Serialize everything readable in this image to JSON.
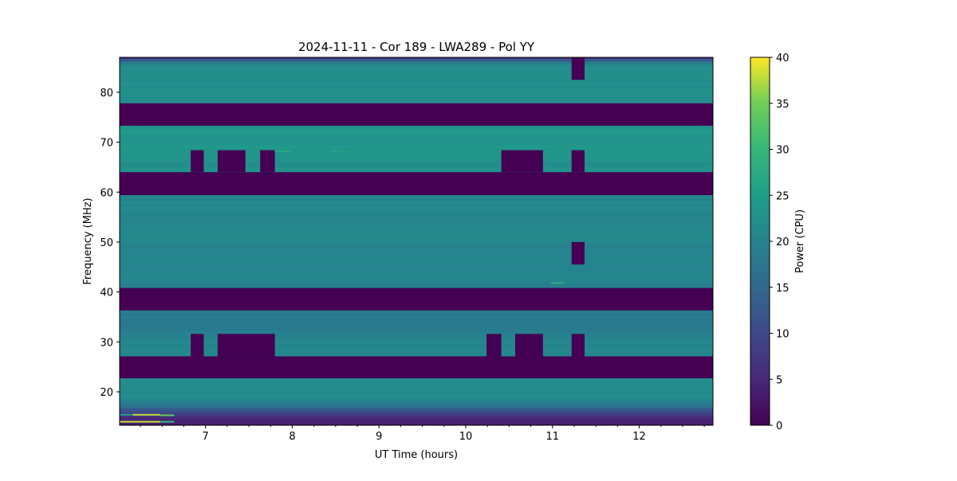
{
  "chart_data": {
    "type": "heatmap",
    "title": "2024-11-11 - Cor 189 - LWA289 - Pol YY",
    "xlabel": "UT Time (hours)",
    "ylabel": "Frequency (MHz)",
    "xlim": [
      6.01,
      12.85
    ],
    "ylim": [
      13.3,
      87.0
    ],
    "xticks": [
      7,
      8,
      9,
      10,
      11,
      12
    ],
    "xtick_labels": [
      "7",
      "8",
      "9",
      "10",
      "11",
      "12"
    ],
    "x_minor_step": 0.25,
    "yticks": [
      20,
      30,
      40,
      50,
      60,
      70,
      80
    ],
    "ytick_labels": [
      "20",
      "30",
      "40",
      "50",
      "60",
      "70",
      "80"
    ],
    "colormap": "viridis",
    "colorbar": {
      "label": "Power (CPU)",
      "range": [
        0,
        40
      ],
      "ticks": [
        0,
        5,
        10,
        15,
        20,
        25,
        30,
        35,
        40
      ],
      "tick_labels": [
        "0",
        "5",
        "10",
        "15",
        "20",
        "25",
        "30",
        "35",
        "40"
      ]
    },
    "power_profile_MHz": [
      [
        13.3,
        3
      ],
      [
        14.5,
        5
      ],
      [
        15.5,
        8
      ],
      [
        16.5,
        13
      ],
      [
        17.5,
        18
      ],
      [
        18.5,
        21
      ],
      [
        20,
        22
      ],
      [
        22.7,
        22
      ],
      [
        27.1,
        21
      ],
      [
        29,
        21
      ],
      [
        31.6,
        20
      ],
      [
        33,
        18.5
      ],
      [
        36.3,
        18.5
      ],
      [
        40.8,
        20
      ],
      [
        43,
        20.5
      ],
      [
        45,
        20.5
      ],
      [
        50,
        20.5
      ],
      [
        55,
        21
      ],
      [
        59.4,
        21
      ],
      [
        64,
        22.5
      ],
      [
        67,
        23
      ],
      [
        70,
        24
      ],
      [
        73.3,
        23.5
      ],
      [
        77.8,
        23
      ],
      [
        82,
        22.5
      ],
      [
        85,
        22
      ],
      [
        86,
        19
      ],
      [
        86.6,
        12
      ],
      [
        87,
        6
      ]
    ],
    "flagged_value": 0,
    "flagged_freq_bands_MHz": [
      [
        73.3,
        77.8
      ],
      [
        59.4,
        64.0
      ],
      [
        36.3,
        40.8
      ],
      [
        22.7,
        27.1
      ]
    ],
    "flagged_blocks": [
      {
        "t": [
          11.22,
          11.37
        ],
        "f": [
          82.5,
          87.0
        ]
      },
      {
        "t": [
          6.83,
          6.98
        ],
        "f": [
          64.0,
          68.4
        ]
      },
      {
        "t": [
          7.14,
          7.46
        ],
        "f": [
          64.0,
          68.4
        ]
      },
      {
        "t": [
          7.63,
          7.8
        ],
        "f": [
          64.0,
          68.4
        ]
      },
      {
        "t": [
          10.41,
          10.89
        ],
        "f": [
          64.0,
          68.4
        ]
      },
      {
        "t": [
          11.22,
          11.37
        ],
        "f": [
          64.0,
          68.4
        ]
      },
      {
        "t": [
          11.22,
          11.37
        ],
        "f": [
          45.5,
          50.0
        ]
      },
      {
        "t": [
          6.83,
          6.98
        ],
        "f": [
          27.1,
          31.6
        ]
      },
      {
        "t": [
          7.14,
          7.8
        ],
        "f": [
          27.1,
          31.6
        ]
      },
      {
        "t": [
          10.24,
          10.41
        ],
        "f": [
          27.1,
          31.6
        ]
      },
      {
        "t": [
          10.57,
          10.89
        ],
        "f": [
          27.1,
          31.6
        ]
      },
      {
        "t": [
          11.22,
          11.37
        ],
        "f": [
          27.1,
          31.6
        ]
      }
    ],
    "rfi_lines": [
      {
        "t": [
          6.16,
          6.48
        ],
        "f": 15.4,
        "v": 38
      },
      {
        "t": [
          6.48,
          6.64
        ],
        "f": 15.3,
        "v": 34
      },
      {
        "t": [
          6.01,
          6.48
        ],
        "f": 14.0,
        "v": 38
      },
      {
        "t": [
          6.48,
          6.64
        ],
        "f": 14.0,
        "v": 30
      },
      {
        "t": [
          6.01,
          6.16
        ],
        "f": 15.4,
        "v": 25
      },
      {
        "t": [
          10.98,
          11.14
        ],
        "f": 41.8,
        "v": 28
      },
      {
        "t": [
          7.8,
          7.98
        ],
        "f": 68.2,
        "v": 27
      },
      {
        "t": [
          8.45,
          8.6
        ],
        "f": 68.2,
        "v": 26
      }
    ]
  }
}
